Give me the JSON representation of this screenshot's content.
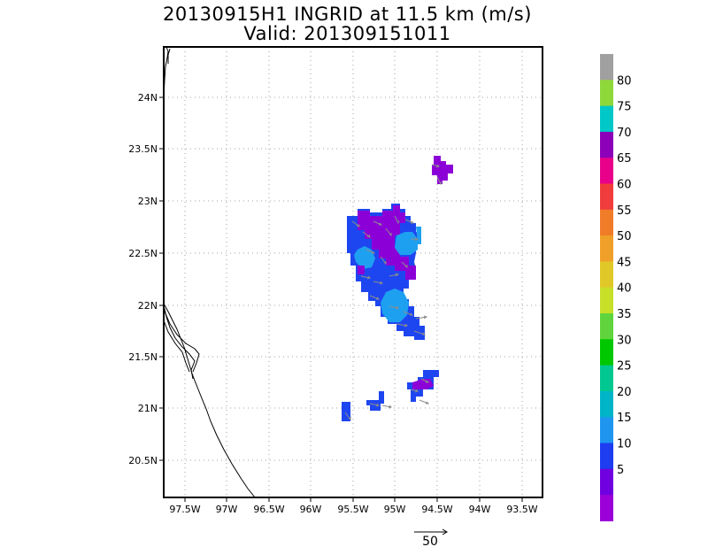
{
  "title": {
    "line1": "20130915H1 INGRID at 11.5 km (m/s)",
    "line2": "Valid: 201309151011"
  },
  "axes": {
    "x_tick_labels": [
      "97.5W",
      "97W",
      "96.5W",
      "96W",
      "95.5W",
      "95W",
      "94.5W",
      "94W",
      "93.5W"
    ],
    "y_tick_labels": [
      "24N",
      "23.5N",
      "23N",
      "22.5N",
      "22N",
      "21.5N",
      "21N",
      "20.5N"
    ]
  },
  "colorbar": {
    "labels": [
      "80",
      "75",
      "70",
      "65",
      "60",
      "55",
      "50",
      "45",
      "40",
      "35",
      "30",
      "25",
      "20",
      "15",
      "10",
      "5"
    ],
    "colors": [
      "#a0a0a0",
      "#8ed83a",
      "#00c8c8",
      "#8b00b8",
      "#e8008a",
      "#f03c3c",
      "#f07c28",
      "#f0a028",
      "#e0c828",
      "#c8e028",
      "#60d43c",
      "#00c800",
      "#00c890",
      "#00b4c8",
      "#1e96f0",
      "#1e3cf0",
      "#7000e0",
      "#9b00d8"
    ]
  },
  "legend": {
    "vector_label": "50",
    "vector_unit_arrow": "→"
  },
  "colors": {
    "wind_10_15": "#1e46f0",
    "wind_15_20": "#1ea0f0",
    "wind_5_10": "#8c00d8",
    "arrow": "#8c8c8c",
    "grid": "#a0a0a0",
    "frame": "#000000"
  }
}
